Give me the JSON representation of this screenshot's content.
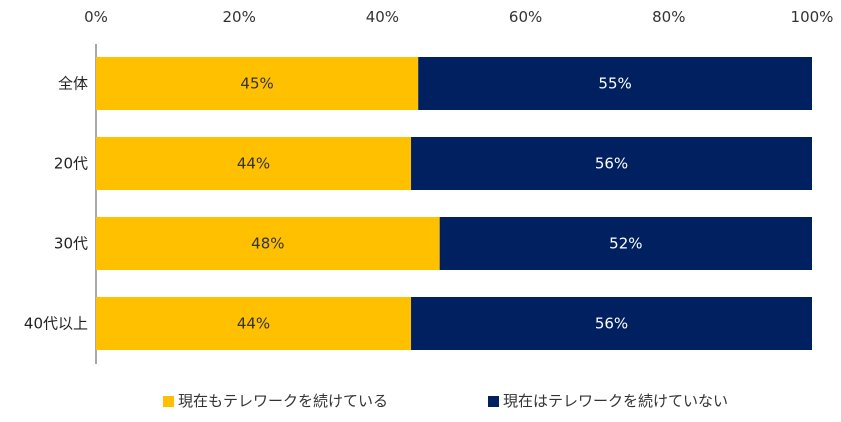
{
  "chart_data": {
    "type": "bar",
    "orientation": "horizontal",
    "stacked": true,
    "percent_axis": true,
    "categories": [
      "全体",
      "20代",
      "30代",
      "40代以上"
    ],
    "series": [
      {
        "name": "現在もテレワークを続けている",
        "values": [
          45,
          44,
          48,
          44
        ],
        "labels": [
          "45%",
          "44%",
          "48%",
          "44%"
        ],
        "color": "#FFC000",
        "label_color": "#333333"
      },
      {
        "name": "現在はテレワークを続けていない",
        "values": [
          55,
          56,
          52,
          56
        ],
        "labels": [
          "55%",
          "56%",
          "52%",
          "56%"
        ],
        "color": "#002060",
        "label_color": "#ffffff"
      }
    ],
    "xlim": [
      0,
      100
    ],
    "xticks": [
      0,
      20,
      40,
      60,
      80,
      100
    ],
    "xtick_labels": [
      "0%",
      "20%",
      "40%",
      "60%",
      "80%",
      "100%"
    ],
    "x_axis_position": "top",
    "grid": false,
    "legend_position": "bottom"
  }
}
